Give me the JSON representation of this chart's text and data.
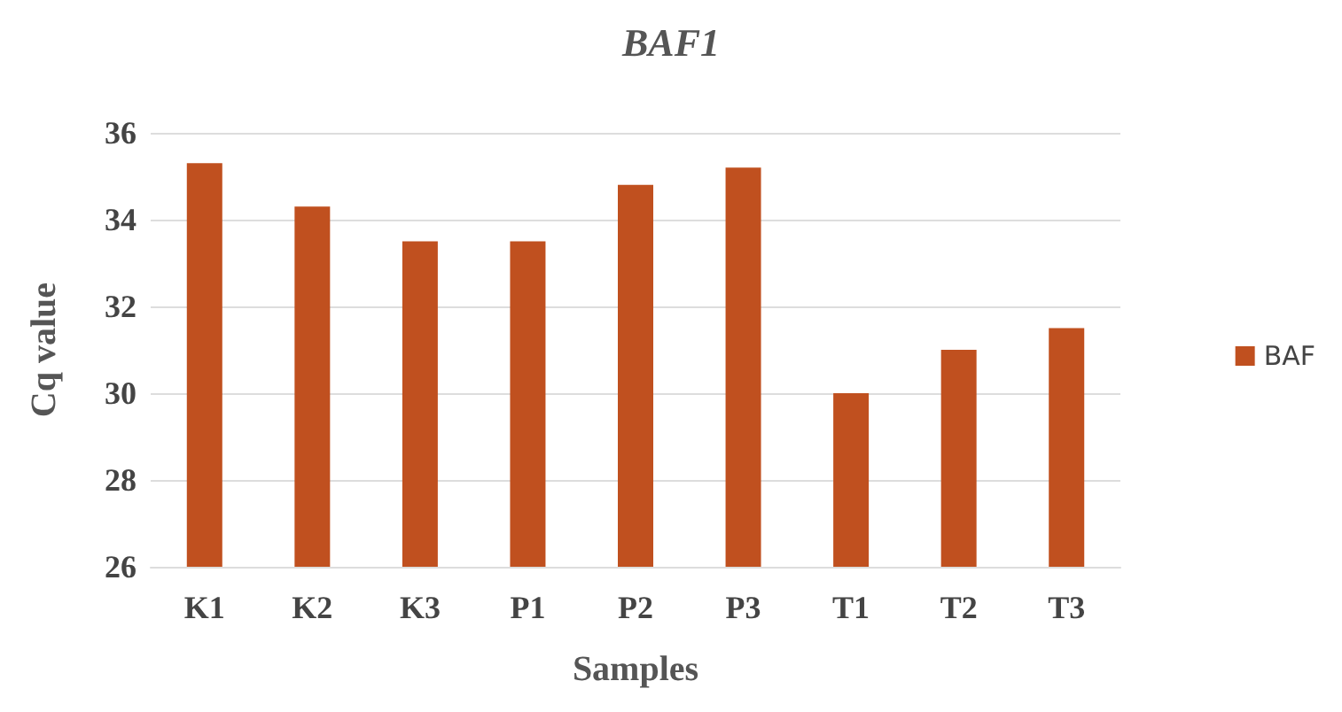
{
  "chart_data": {
    "type": "bar",
    "title": "BAF1",
    "xlabel": "Samples",
    "ylabel": "Cq value",
    "categories": [
      "K1",
      "K2",
      "K3",
      "P1",
      "P2",
      "P3",
      "T1",
      "T2",
      "T3"
    ],
    "series": [
      {
        "name": "BAF",
        "color": "#c0501f",
        "values": [
          35.3,
          34.3,
          33.5,
          33.5,
          34.8,
          35.2,
          30.0,
          31.0,
          31.5
        ]
      }
    ],
    "ylim": [
      26,
      36
    ],
    "yticks": [
      26,
      28,
      30,
      32,
      34,
      36
    ],
    "grid": "y",
    "legend": "right"
  }
}
